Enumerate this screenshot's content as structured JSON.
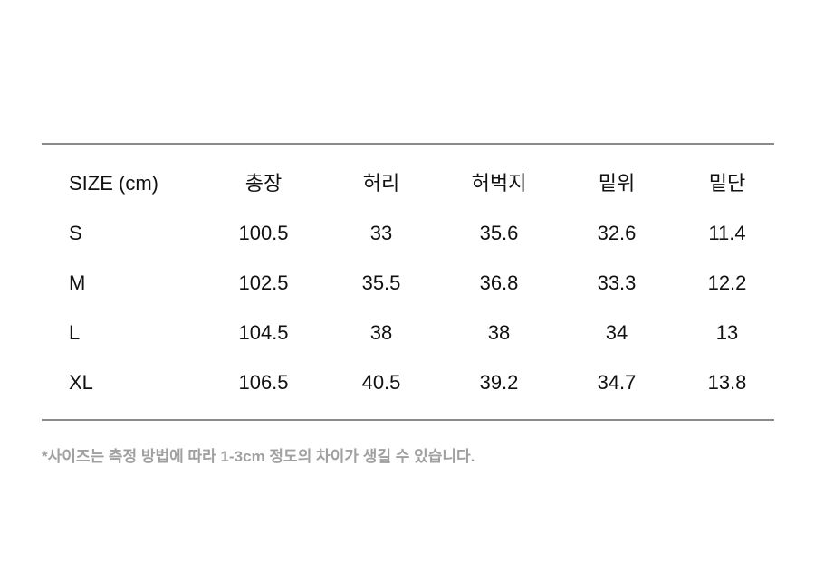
{
  "table": {
    "headers": [
      "SIZE (cm)",
      "총장",
      "허리",
      "허벅지",
      "밑위",
      "밑단"
    ],
    "rows": [
      [
        "S",
        "100.5",
        "33",
        "35.6",
        "32.6",
        "11.4"
      ],
      [
        "M",
        "102.5",
        "35.5",
        "36.8",
        "33.3",
        "12.2"
      ],
      [
        "L",
        "104.5",
        "38",
        "38",
        "34",
        "13"
      ],
      [
        "XL",
        "106.5",
        "40.5",
        "39.2",
        "34.7",
        "13.8"
      ]
    ]
  },
  "note": "*사이즈는 측정 방법에 따라 1-3cm 정도의 차이가 생길 수 있습니다."
}
